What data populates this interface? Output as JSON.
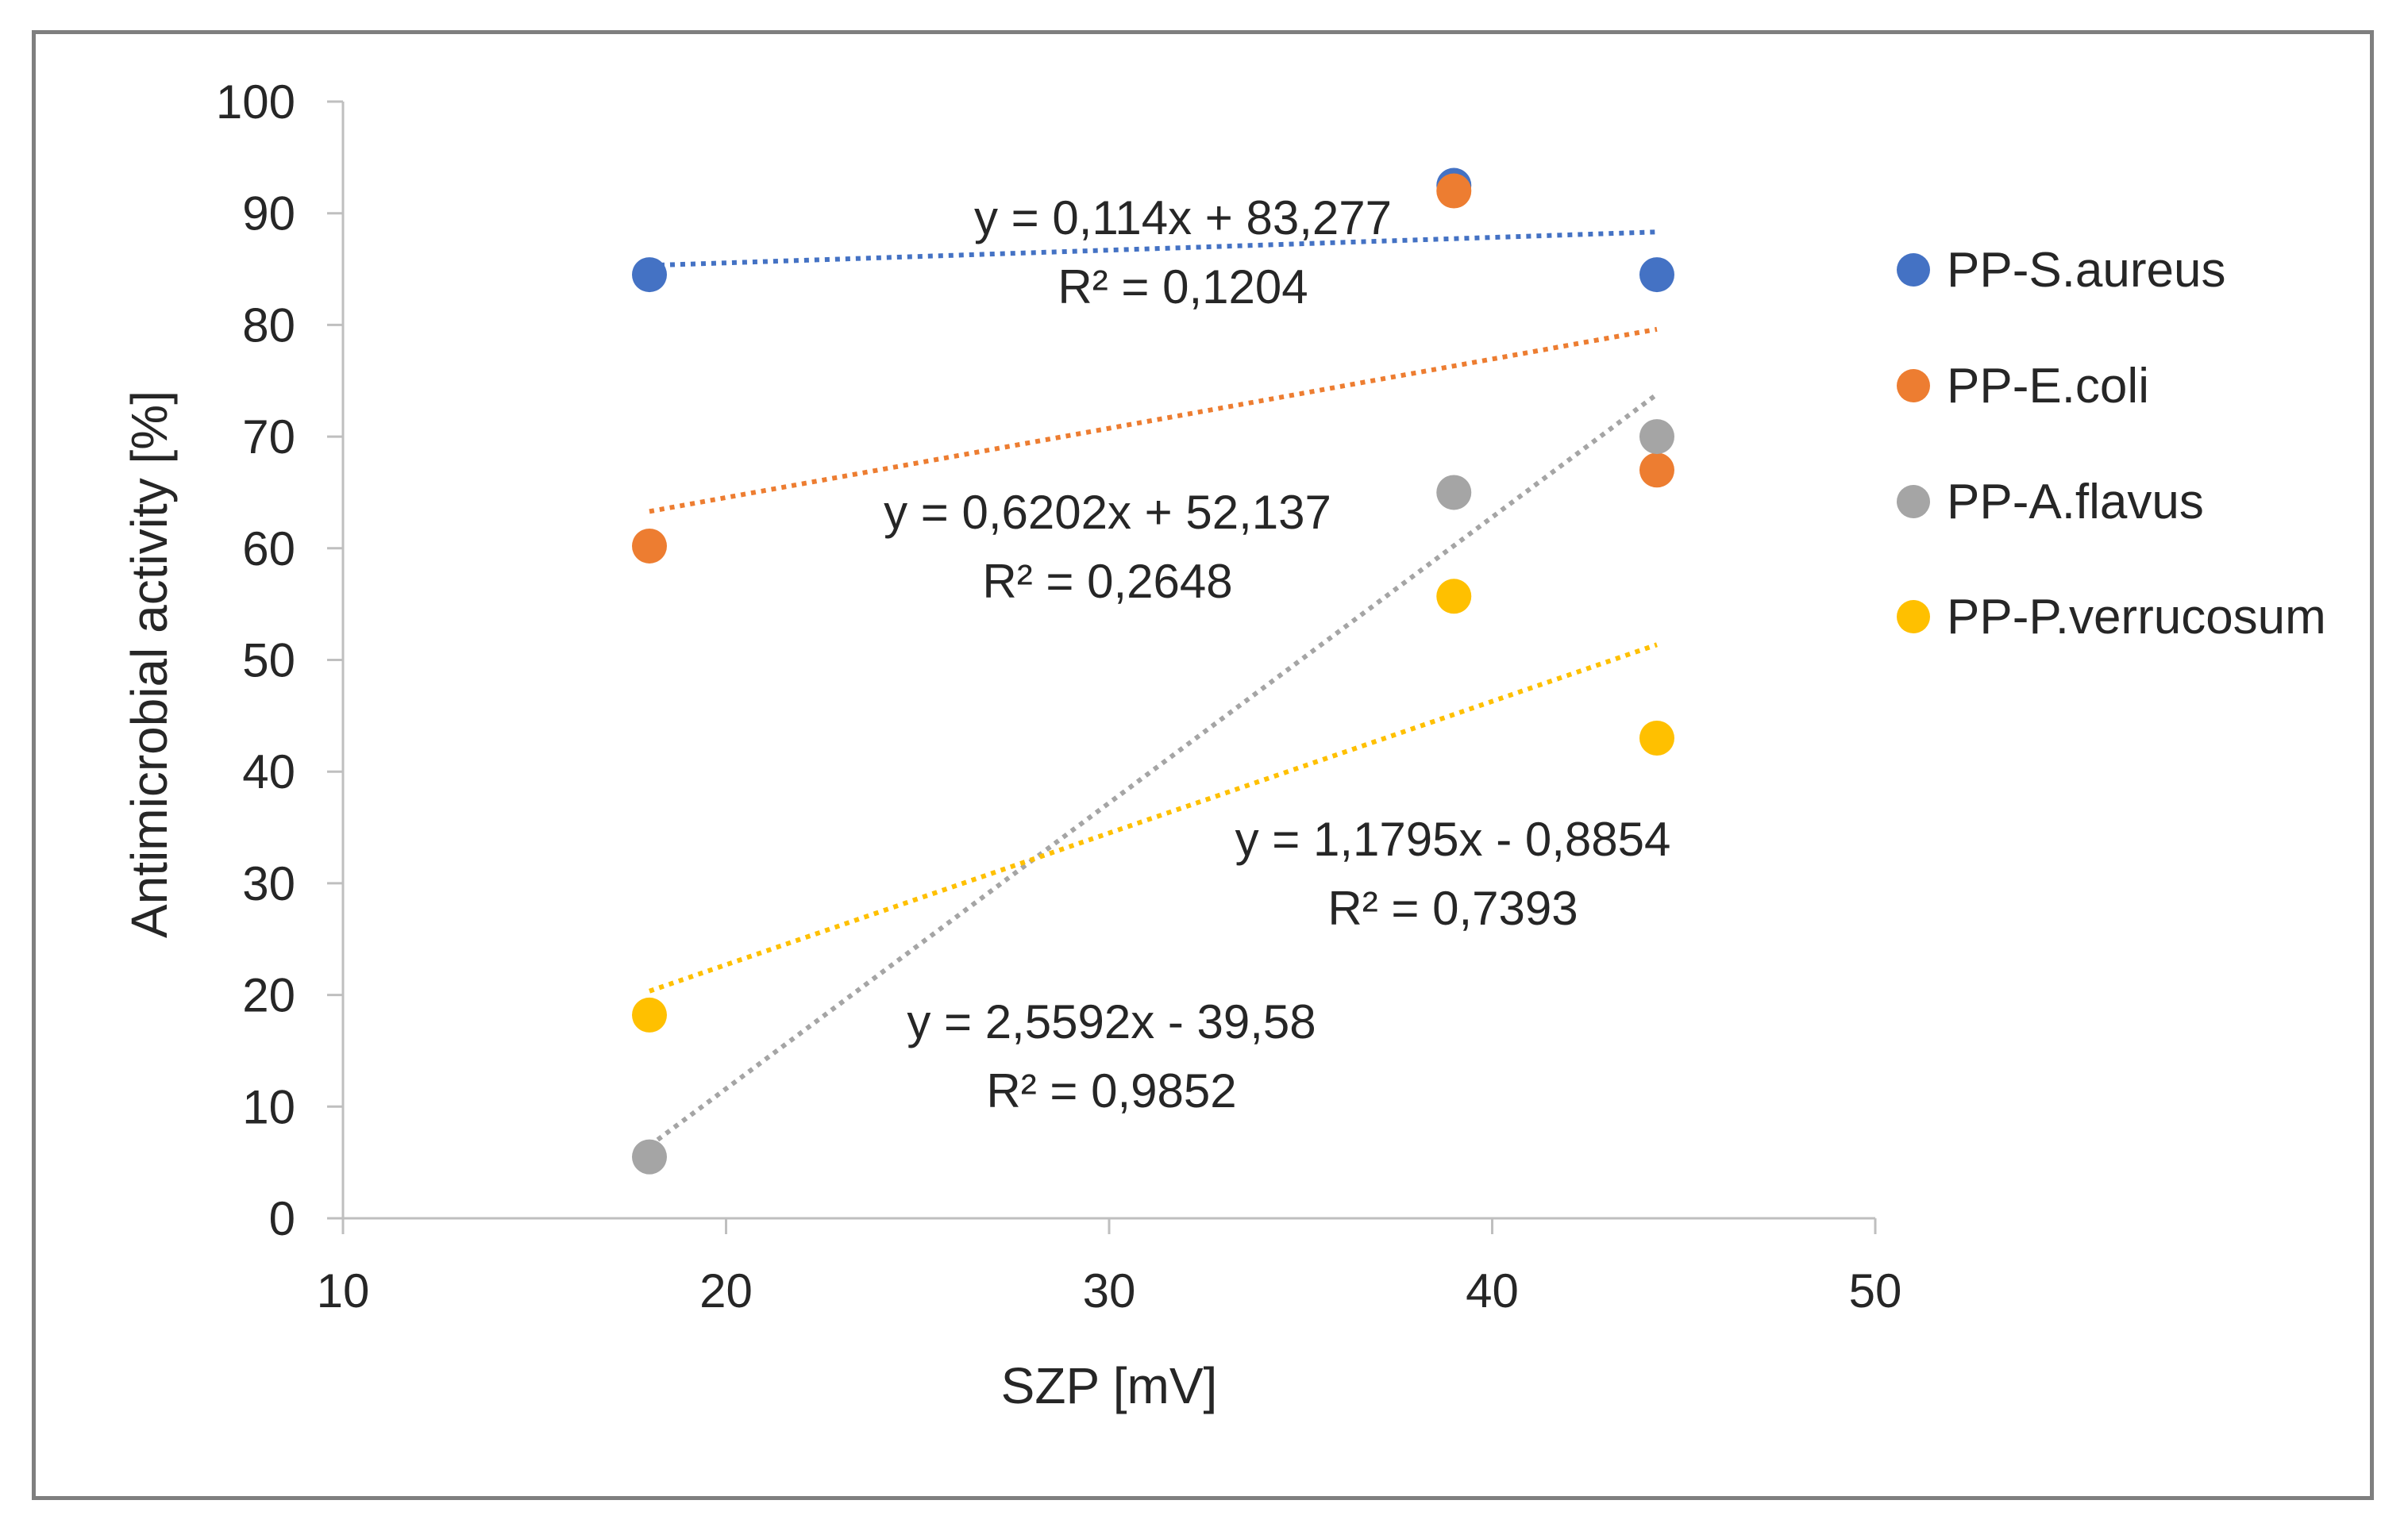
{
  "chart_data": {
    "type": "scatter",
    "title": "",
    "xlabel": "SZP [mV]",
    "ylabel": "Antimicrobial activity [%]",
    "xlim": [
      10,
      50
    ],
    "ylim": [
      0,
      100
    ],
    "xticks": [
      10,
      20,
      30,
      40,
      50
    ],
    "yticks": [
      0,
      10,
      20,
      30,
      40,
      50,
      60,
      70,
      80,
      90,
      100
    ],
    "grid": false,
    "legend_position": "right",
    "series": [
      {
        "name": "PP-S.aureus",
        "color": "#4472c4",
        "x": [
          18,
          39,
          44.3
        ],
        "y": [
          84.5,
          92.5,
          84.5
        ],
        "trendline": {
          "type": "linear",
          "slope": 0.114,
          "intercept": 83.277,
          "x_range": [
            18,
            44.3
          ]
        },
        "equation": "y = 0,114x + 83,277",
        "r2": "R² = 0,1204"
      },
      {
        "name": "PP-E.coli",
        "color": "#ed7d31",
        "x": [
          18,
          39,
          44.3
        ],
        "y": [
          60.2,
          92,
          67
        ],
        "trendline": {
          "type": "linear",
          "slope": 0.6202,
          "intercept": 52.137,
          "x_range": [
            18,
            44.3
          ]
        },
        "equation": "y = 0,6202x + 52,137",
        "r2": "R² = 0,2648"
      },
      {
        "name": "PP-A.flavus",
        "color": "#a5a5a5",
        "x": [
          18,
          39,
          44.3
        ],
        "y": [
          5.5,
          65,
          70
        ],
        "trendline": {
          "type": "linear",
          "slope": 2.5592,
          "intercept": -39.58,
          "x_range": [
            18,
            44.3
          ]
        },
        "equation": "y = 2,5592x - 39,58",
        "r2": "R² = 0,9852"
      },
      {
        "name": "PP-P.verrucosum",
        "color": "#ffc000",
        "x": [
          18,
          39,
          44.3
        ],
        "y": [
          18.2,
          55.7,
          43
        ],
        "trendline": {
          "type": "linear",
          "slope": 1.1795,
          "intercept": -0.8854,
          "x_range": [
            18,
            44.3
          ]
        },
        "equation": "y = 1,1795x - 0,8854",
        "r2": "R² = 0,7393"
      }
    ]
  }
}
